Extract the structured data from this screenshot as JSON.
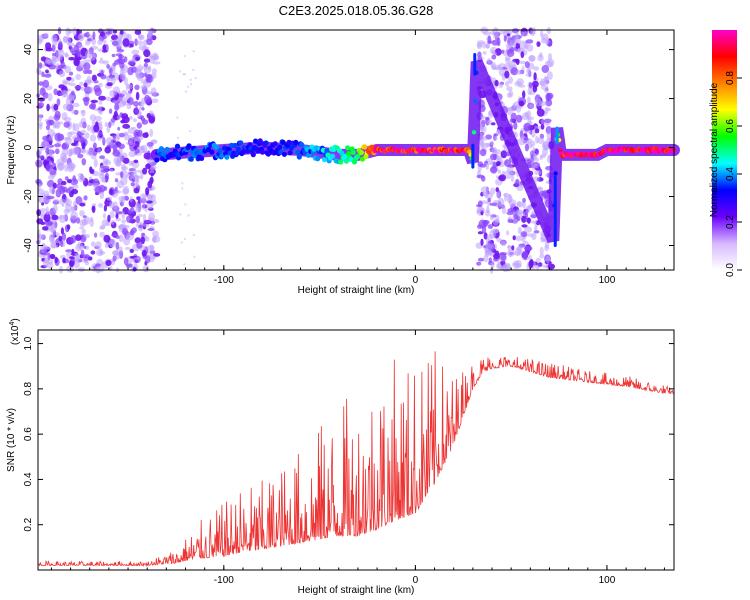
{
  "title": "C2E3.2025.018.05.36.G28",
  "chart_data": [
    {
      "type": "heatmap",
      "xlabel": "Height of straight line (km)",
      "ylabel": "Frequency (Hz)",
      "xlim": [
        -197,
        135
      ],
      "ylim": [
        -50,
        48
      ],
      "xticks": [
        -100,
        0,
        100
      ],
      "yticks": [
        -40,
        -20,
        0,
        20,
        40
      ],
      "grid": false,
      "colorbar": {
        "label": "Normalized spectral amplitude",
        "range": [
          0,
          1
        ],
        "ticks": [
          "0.0",
          "0.2",
          "0.4",
          "0.6",
          "0.8"
        ],
        "colors": [
          "#ffffff",
          "#d6b8ff",
          "#6a00ff",
          "#0000ff",
          "#00ffff",
          "#00ff00",
          "#ffff00",
          "#ff8000",
          "#ff0000",
          "#ff00cc"
        ]
      },
      "ridge": {
        "x": [
          -135,
          -120,
          -100,
          -80,
          -60,
          -40,
          -30,
          -20,
          0,
          20,
          28,
          30,
          32,
          72,
          74,
          76,
          80,
          95,
          100,
          135
        ],
        "freq": [
          -3,
          -2,
          -1,
          0,
          -1,
          -3,
          -3,
          -1,
          -1,
          -1,
          -1,
          -6,
          35,
          -38,
          8,
          -3,
          -3,
          -3,
          -1,
          -1
        ],
        "amplitude": [
          0.35,
          0.35,
          0.35,
          0.3,
          0.35,
          0.45,
          0.55,
          0.9,
          0.9,
          0.9,
          0.9,
          0.5,
          0.3,
          0.3,
          0.4,
          0.95,
          0.95,
          0.95,
          0.95,
          0.95
        ]
      },
      "noise_bands": [
        [
          -197,
          -135
        ],
        [
          33,
          71
        ]
      ]
    },
    {
      "type": "line",
      "xlabel": "Height of straight line (km)",
      "ylabel": "SNR (10 * v/v)",
      "multiplier": "(x10",
      "multiplier_exp": "4",
      "multiplier_close": ")",
      "xlim": [
        -197,
        135
      ],
      "ylim": [
        0,
        1.06
      ],
      "xticks": [
        -100,
        0,
        100
      ],
      "yticks": [
        "0.2",
        "0.4",
        "0.6",
        "0.8",
        "1.0"
      ],
      "line_color": "#ee3333",
      "envelope": {
        "x": [
          -197,
          -140,
          -125,
          -115,
          -100,
          -90,
          -80,
          -60,
          -40,
          -30,
          -20,
          -10,
          0,
          10,
          20,
          25,
          30,
          35,
          40,
          50,
          70,
          90,
          110,
          130,
          135
        ],
        "base": [
          0.02,
          0.02,
          0.03,
          0.05,
          0.06,
          0.08,
          0.09,
          0.12,
          0.15,
          0.15,
          0.18,
          0.22,
          0.25,
          0.38,
          0.55,
          0.68,
          0.8,
          0.87,
          0.89,
          0.9,
          0.85,
          0.83,
          0.81,
          0.78,
          0.78
        ],
        "peak": [
          0.04,
          0.04,
          0.1,
          0.2,
          0.3,
          0.38,
          0.4,
          0.55,
          0.75,
          0.8,
          0.95,
          0.95,
          0.95,
          0.98,
          0.88,
          0.9,
          0.93,
          0.95,
          0.96,
          0.95,
          0.92,
          0.88,
          0.86,
          0.82,
          0.8
        ]
      }
    }
  ]
}
